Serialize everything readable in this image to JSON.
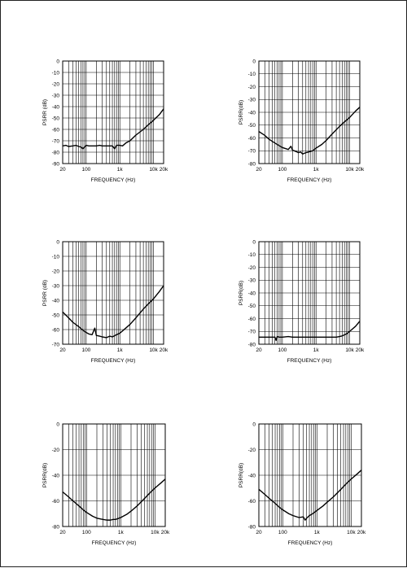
{
  "chart_data": [
    {
      "type": "line",
      "xlabel": "FREQUENCY (Hz)",
      "ylabel": "PSRR (dB)",
      "xscale": "log",
      "xlim": [
        20,
        20000
      ],
      "ylim": [
        -90,
        0
      ],
      "x_ticks": [
        20,
        100,
        1000,
        10000,
        20000
      ],
      "x_tick_labels": [
        "20",
        "100",
        "1k",
        "10k",
        "20k"
      ],
      "y_ticks": [
        0,
        -10,
        -20,
        -30,
        -40,
        -50,
        -60,
        -70,
        -80,
        -90
      ],
      "y_tick_labels": [
        "0",
        "-10",
        "-20",
        "-30",
        "-40",
        "-50",
        "-60",
        "-70",
        "-80",
        "-90"
      ],
      "grid": true,
      "series": [
        {
          "x": [
            20,
            25,
            30,
            40,
            50,
            60,
            70,
            80,
            100,
            120,
            150,
            200,
            250,
            300,
            400,
            500,
            600,
            700,
            800,
            1000,
            1200,
            1500,
            2000,
            3000,
            5000,
            7000,
            10000,
            15000,
            20000
          ],
          "values": [
            -74.5,
            -74,
            -75,
            -74.5,
            -74,
            -75,
            -75.5,
            -77,
            -74,
            -74.5,
            -74.5,
            -74.5,
            -74,
            -74.5,
            -74.5,
            -74.5,
            -74.5,
            -77,
            -74,
            -74,
            -74.5,
            -72,
            -70,
            -65,
            -60,
            -56,
            -52,
            -47,
            -42
          ]
        }
      ]
    },
    {
      "type": "line",
      "xlabel": "FREQUENCY (Hz)",
      "ylabel": "PSRR(dB)",
      "xscale": "log",
      "xlim": [
        20,
        20000
      ],
      "ylim": [
        -80,
        0
      ],
      "x_ticks": [
        20,
        100,
        1000,
        10000,
        20000
      ],
      "x_tick_labels": [
        "20",
        "100",
        "1k",
        "10k",
        "20k"
      ],
      "y_ticks": [
        0,
        -10,
        -20,
        -30,
        -40,
        -50,
        -60,
        -70,
        -80
      ],
      "y_tick_labels": [
        "0",
        "-10",
        "-20",
        "-30",
        "-40",
        "-50",
        "-60",
        "-70",
        "-80"
      ],
      "grid": true,
      "series": [
        {
          "x": [
            20,
            30,
            40,
            60,
            80,
            100,
            150,
            180,
            200,
            250,
            300,
            350,
            400,
            500,
            600,
            800,
            1000,
            1500,
            2000,
            3000,
            5000,
            7000,
            10000,
            15000,
            20000
          ],
          "values": [
            -55,
            -58,
            -61,
            -64,
            -66,
            -67.5,
            -69,
            -66.5,
            -69.5,
            -70.5,
            -71.5,
            -71,
            -72.5,
            -71.5,
            -71,
            -70,
            -68,
            -65,
            -62,
            -57,
            -51,
            -47.5,
            -44,
            -39,
            -36
          ]
        }
      ]
    },
    {
      "type": "line",
      "xlabel": "FREQUENCY (Hz)",
      "ylabel": "PSRR (dB)",
      "xscale": "log",
      "xlim": [
        20,
        20000
      ],
      "ylim": [
        -70,
        0
      ],
      "x_ticks": [
        20,
        100,
        1000,
        10000,
        20000
      ],
      "x_tick_labels": [
        "20",
        "100",
        "1k",
        "10k",
        "20k"
      ],
      "y_ticks": [
        0,
        -10,
        -20,
        -30,
        -40,
        -50,
        -60,
        -70
      ],
      "y_tick_labels": [
        "0",
        "-10",
        "-20",
        "-30",
        "-40",
        "-50",
        "-60",
        "-70"
      ],
      "grid": true,
      "series": [
        {
          "x": [
            20,
            30,
            40,
            60,
            80,
            100,
            120,
            150,
            180,
            200,
            250,
            300,
            400,
            500,
            600,
            800,
            1000,
            1500,
            2000,
            3000,
            5000,
            7000,
            10000,
            15000,
            20000
          ],
          "values": [
            -48,
            -52,
            -55,
            -58,
            -60.5,
            -62,
            -63,
            -63.5,
            -59,
            -64,
            -64.5,
            -65,
            -65.5,
            -64.5,
            -65,
            -63.5,
            -62.5,
            -59,
            -56.5,
            -52,
            -46,
            -42.5,
            -39,
            -34,
            -30
          ]
        }
      ]
    },
    {
      "type": "line",
      "xlabel": "FREQUENCY (Hz)",
      "ylabel": "PSRR(dB)",
      "xscale": "log",
      "xlim": [
        20,
        20000
      ],
      "ylim": [
        -80,
        0
      ],
      "x_ticks": [
        20,
        100,
        1000,
        10000,
        20000
      ],
      "x_tick_labels": [
        "20",
        "100",
        "1k",
        "10k",
        "20k"
      ],
      "y_ticks": [
        0,
        -10,
        -20,
        -30,
        -40,
        -50,
        -60,
        -70,
        -80
      ],
      "y_tick_labels": [
        "0",
        "-10",
        "-20",
        "-30",
        "-40",
        "-50",
        "-60",
        "-70",
        "-80"
      ],
      "grid": true,
      "series": [
        {
          "x": [
            20,
            30,
            40,
            50,
            60,
            65,
            70,
            80,
            100,
            150,
            200,
            300,
            500,
            700,
            1000,
            1500,
            2000,
            3000,
            4000,
            5000,
            6000,
            8000,
            10000,
            15000,
            20000
          ],
          "values": [
            -74.5,
            -74.5,
            -74.5,
            -74.5,
            -74.5,
            -77,
            -74,
            -74.5,
            -74.5,
            -74,
            -74.5,
            -74.5,
            -74.5,
            -74.5,
            -74.5,
            -74.5,
            -74.5,
            -74.5,
            -74.5,
            -74,
            -73.5,
            -72,
            -70,
            -66,
            -62
          ]
        }
      ]
    },
    {
      "type": "line",
      "xlabel": "FREQUENCY (Hz)",
      "ylabel": "PSRR(dB)",
      "xscale": "log",
      "xlim": [
        20,
        20000
      ],
      "ylim": [
        -80,
        0
      ],
      "x_ticks": [
        20,
        100,
        1000,
        10000,
        20000
      ],
      "x_tick_labels": [
        "20",
        "100",
        "1k",
        "10k",
        "20k"
      ],
      "y_ticks": [
        0,
        -20,
        -40,
        -60,
        -80
      ],
      "y_tick_labels": [
        "0",
        "-20",
        "-40",
        "-60",
        "-80"
      ],
      "grid": true,
      "series": [
        {
          "x": [
            20,
            30,
            40,
            60,
            80,
            100,
            150,
            200,
            300,
            400,
            500,
            600,
            700,
            800,
            1000,
            1500,
            2000,
            3000,
            5000,
            7000,
            10000,
            15000,
            20000
          ],
          "values": [
            -53,
            -57,
            -60,
            -64,
            -67,
            -69,
            -72,
            -73.5,
            -74.5,
            -75,
            -75,
            -74.5,
            -74.5,
            -74,
            -73,
            -70.5,
            -68,
            -64,
            -58,
            -54,
            -50,
            -46,
            -43
          ]
        }
      ]
    },
    {
      "type": "line",
      "xlabel": "FREQUENCY (Hz)",
      "ylabel": "PSRR(dB)",
      "xscale": "log",
      "xlim": [
        20,
        20000
      ],
      "ylim": [
        -80,
        0
      ],
      "x_ticks": [
        20,
        100,
        1000,
        10000,
        20000
      ],
      "x_tick_labels": [
        "20",
        "100",
        "1k",
        "10k",
        "20k"
      ],
      "y_ticks": [
        0,
        -20,
        -40,
        -60,
        -80
      ],
      "y_tick_labels": [
        "0",
        "-20",
        "-40",
        "-60",
        "-80"
      ],
      "grid": true,
      "series": [
        {
          "x": [
            20,
            30,
            40,
            60,
            80,
            100,
            150,
            200,
            300,
            400,
            450,
            500,
            600,
            700,
            800,
            1000,
            1500,
            2000,
            3000,
            5000,
            7000,
            10000,
            15000,
            20000
          ],
          "values": [
            -51,
            -55,
            -58,
            -62,
            -65,
            -67,
            -70,
            -71.5,
            -73,
            -72.5,
            -75,
            -73.5,
            -71.5,
            -70.5,
            -69.5,
            -67.5,
            -64,
            -61,
            -57,
            -51,
            -47,
            -43,
            -39,
            -36
          ]
        }
      ]
    }
  ]
}
